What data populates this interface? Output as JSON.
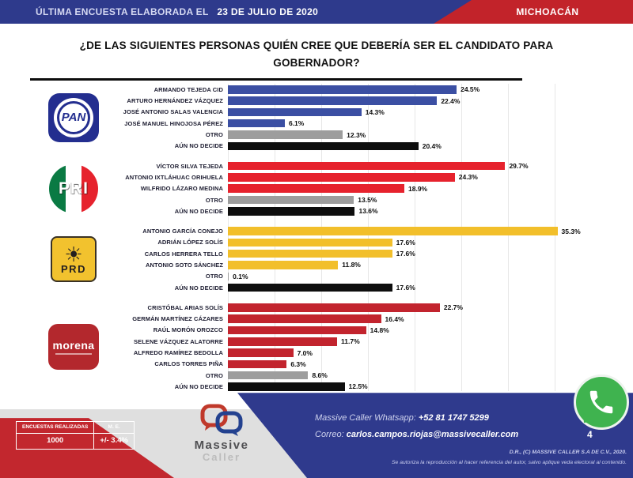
{
  "header": {
    "left_label": "ÚLTIMA ENCUESTA ELABORADA EL",
    "left_date": "23 DE JULIO DE 2020",
    "region": "MICHOACÁN"
  },
  "title_line1": "¿DE LAS SIGUIENTES PERSONAS QUIÉN CREE QUE DEBERÍA SER EL CANDIDATO PARA",
  "title_line2": "GOBERNADOR?",
  "colors": {
    "pan": "#3b4fa3",
    "pri": "#e6222d",
    "prd": "#f2bf2b",
    "morena": "#c2242e",
    "otro": "#9d9d9d",
    "undecided": "#0e0e0e",
    "header_blue": "#2e3a8c",
    "header_red": "#c2232a",
    "footer_blue": "#2f3a8d",
    "footer_red": "#c2272e",
    "whatsapp_green": "#3fb34f"
  },
  "icons": {
    "sun-icon": "☀"
  },
  "chart_data": {
    "type": "bar",
    "orientation": "horizontal",
    "title": "¿De las siguientes personas quién cree que debería ser el candidato para gobernador?",
    "unit": "%",
    "xlim": [
      0,
      35
    ],
    "gridline_step_percent": 5,
    "grid": true,
    "groups": [
      {
        "id": "pan",
        "party": "PAN",
        "bars": [
          {
            "label": "ARMANDO TEJEDA CID",
            "value": 24.5,
            "display": "24.5%",
            "role": "candidate"
          },
          {
            "label": "ARTURO HERNÁNDEZ VÁZQUEZ",
            "value": 22.4,
            "display": "22.4%",
            "role": "candidate"
          },
          {
            "label": "JOSÉ ANTONIO SALAS VALENCIA",
            "value": 14.3,
            "display": "14.3%",
            "role": "candidate"
          },
          {
            "label": "JOSÉ MANUEL HINOJOSA PÉREZ",
            "value": 6.1,
            "display": "6.1%",
            "role": "candidate"
          },
          {
            "label": "OTRO",
            "value": 12.3,
            "display": "12.3%",
            "role": "otro"
          },
          {
            "label": "AÚN NO DECIDE",
            "value": 20.4,
            "display": "20.4%",
            "role": "undecided"
          }
        ]
      },
      {
        "id": "pri",
        "party": "PRI",
        "bars": [
          {
            "label": "VÍCTOR SILVA TEJEDA",
            "value": 29.7,
            "display": "29.7%",
            "role": "candidate"
          },
          {
            "label": "ANTONIO IXTLÁHUAC ORIHUELA",
            "value": 24.3,
            "display": "24.3%",
            "role": "candidate"
          },
          {
            "label": "WILFRIDO LÁZARO MEDINA",
            "value": 18.9,
            "display": "18.9%",
            "role": "candidate"
          },
          {
            "label": "OTRO",
            "value": 13.5,
            "display": "13.5%",
            "role": "otro"
          },
          {
            "label": "AÚN NO DECIDE",
            "value": 13.6,
            "display": "13.6%",
            "role": "undecided"
          }
        ]
      },
      {
        "id": "prd",
        "party": "PRD",
        "bars": [
          {
            "label": "ANTONIO GARCÍA CONEJO",
            "value": 35.3,
            "display": "35.3%",
            "role": "candidate"
          },
          {
            "label": "ADRIÁN LÓPEZ SOLÍS",
            "value": 17.6,
            "display": "17.6%",
            "role": "candidate"
          },
          {
            "label": "CARLOS HERRERA TELLO",
            "value": 17.6,
            "display": "17.6%",
            "role": "candidate"
          },
          {
            "label": "ANTONIO SOTO SÁNCHEZ",
            "value": 11.8,
            "display": "11.8%",
            "role": "candidate"
          },
          {
            "label": "OTRO",
            "value": 0.1,
            "display": "0.1%",
            "role": "otro"
          },
          {
            "label": "AÚN NO DECIDE",
            "value": 17.6,
            "display": "17.6%",
            "role": "undecided"
          }
        ]
      },
      {
        "id": "morena",
        "party": "morena",
        "bars": [
          {
            "label": "CRISTÓBAL ARIAS SOLÍS",
            "value": 22.7,
            "display": "22.7%",
            "role": "candidate"
          },
          {
            "label": "GERMÁN MARTÍNEZ CÁZARES",
            "value": 16.4,
            "display": "16.4%",
            "role": "candidate"
          },
          {
            "label": "RAÚL MORÓN OROZCO",
            "value": 14.8,
            "display": "14.8%",
            "role": "candidate"
          },
          {
            "label": "SELENE VÁZQUEZ ALATORRE",
            "value": 11.7,
            "display": "11.7%",
            "role": "candidate"
          },
          {
            "label": "ALFREDO RAMÍREZ BEDOLLA",
            "value": 7.0,
            "display": "7.0%",
            "role": "candidate"
          },
          {
            "label": "CARLOS TORRES PIÑA",
            "value": 6.3,
            "display": "6.3%",
            "role": "candidate"
          },
          {
            "label": "OTRO",
            "value": 8.6,
            "display": "8.6%",
            "role": "otro"
          },
          {
            "label": "AÚN NO DECIDE",
            "value": 12.5,
            "display": "12.5%",
            "role": "undecided"
          }
        ]
      }
    ]
  },
  "footer": {
    "survey_table": {
      "col1_header": "ENCUESTAS REALIZADAS",
      "col2_header": "M. E.",
      "col1_value": "1000",
      "col2_value": "+/- 3.4%"
    },
    "brand": {
      "name_top": "Massive",
      "name_bottom": "Caller"
    },
    "whatsapp_label": "Massive Caller Whatsapp:",
    "whatsapp_number": "+52 81 1747 5299",
    "email_label": "Correo:",
    "email": "carlos.campos.riojas@massivecaller.com",
    "page_number": "4",
    "copyright": "D.R., (C) MASSIVE CALLER S.A DE C.V., 2020.",
    "disclaimer": "Se autoriza la reproducción al hacer referencia del autor, salvo aplique veda electoral al contenido."
  }
}
